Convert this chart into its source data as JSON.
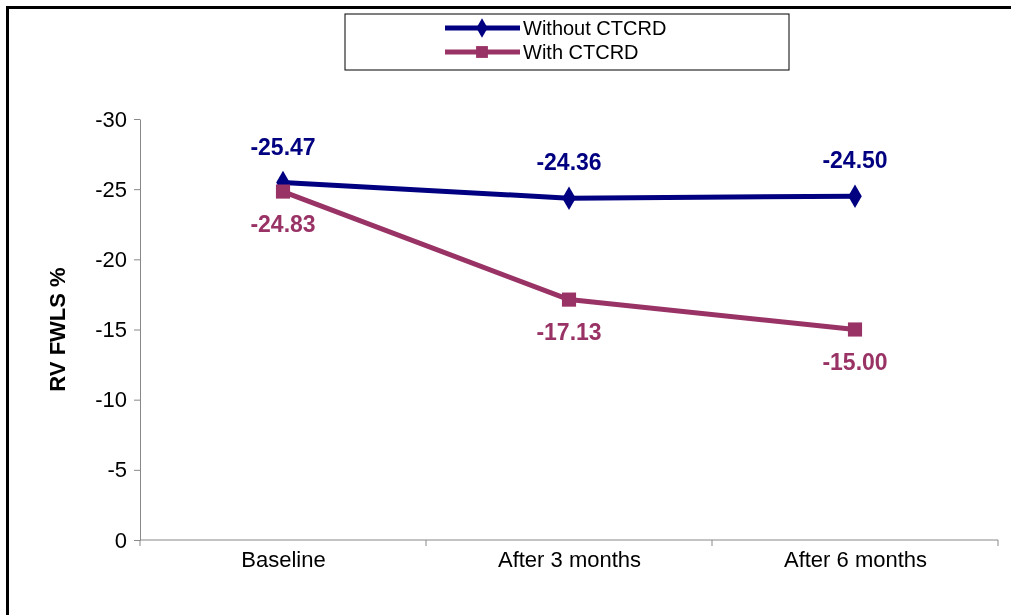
{
  "chart_data": {
    "type": "line",
    "ylabel": "RV FWLS %",
    "categories": [
      "Baseline",
      "After 3 months",
      "After 6 months"
    ],
    "series": [
      {
        "name": "Without CTCRD",
        "color": "#000080",
        "marker": "diamond",
        "values": [
          -25.47,
          -24.36,
          -24.5
        ],
        "value_labels": [
          "-25.47",
          "-24.36",
          "-24.50"
        ]
      },
      {
        "name": "With CTCRD",
        "color": "#993366",
        "marker": "square",
        "values": [
          -24.83,
          -17.13,
          -15.0
        ],
        "value_labels": [
          "-24.83",
          "-17.13",
          "-15.00"
        ]
      }
    ],
    "ylim": [
      0,
      -30
    ],
    "yticks": [
      0,
      -5,
      -10,
      -15,
      -20,
      -25,
      -30
    ],
    "legend": "top",
    "grid": false
  }
}
